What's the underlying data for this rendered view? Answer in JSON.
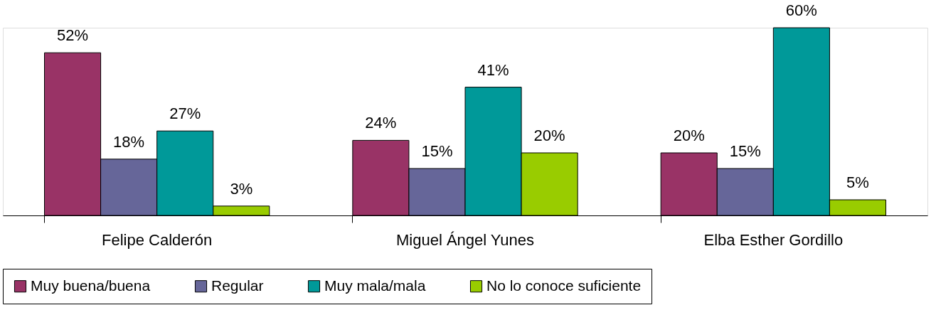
{
  "chart_data": {
    "type": "bar",
    "categories": [
      "Felipe Calderón",
      "Miguel Ángel Yunes",
      "Elba Esther Gordillo"
    ],
    "series": [
      {
        "name": "Muy buena/buena",
        "color": "#993366",
        "values": [
          52,
          24,
          20
        ],
        "value_labels": [
          "52%",
          "24%",
          "20%"
        ]
      },
      {
        "name": "Regular",
        "color": "#666699",
        "values": [
          18,
          15,
          15
        ],
        "value_labels": [
          "18%",
          "15%",
          "15%"
        ]
      },
      {
        "name": "Muy mala/mala",
        "color": "#009999",
        "values": [
          27,
          41,
          60
        ],
        "value_labels": [
          "27%",
          "41%",
          "60%"
        ]
      },
      {
        "name": "No lo conoce suficiente",
        "color": "#99cc00",
        "values": [
          3,
          20,
          5
        ],
        "value_labels": [
          "3%",
          "20%",
          "5%"
        ]
      }
    ],
    "legend": "bottom",
    "tick_labels": "x",
    "grid": false
  }
}
